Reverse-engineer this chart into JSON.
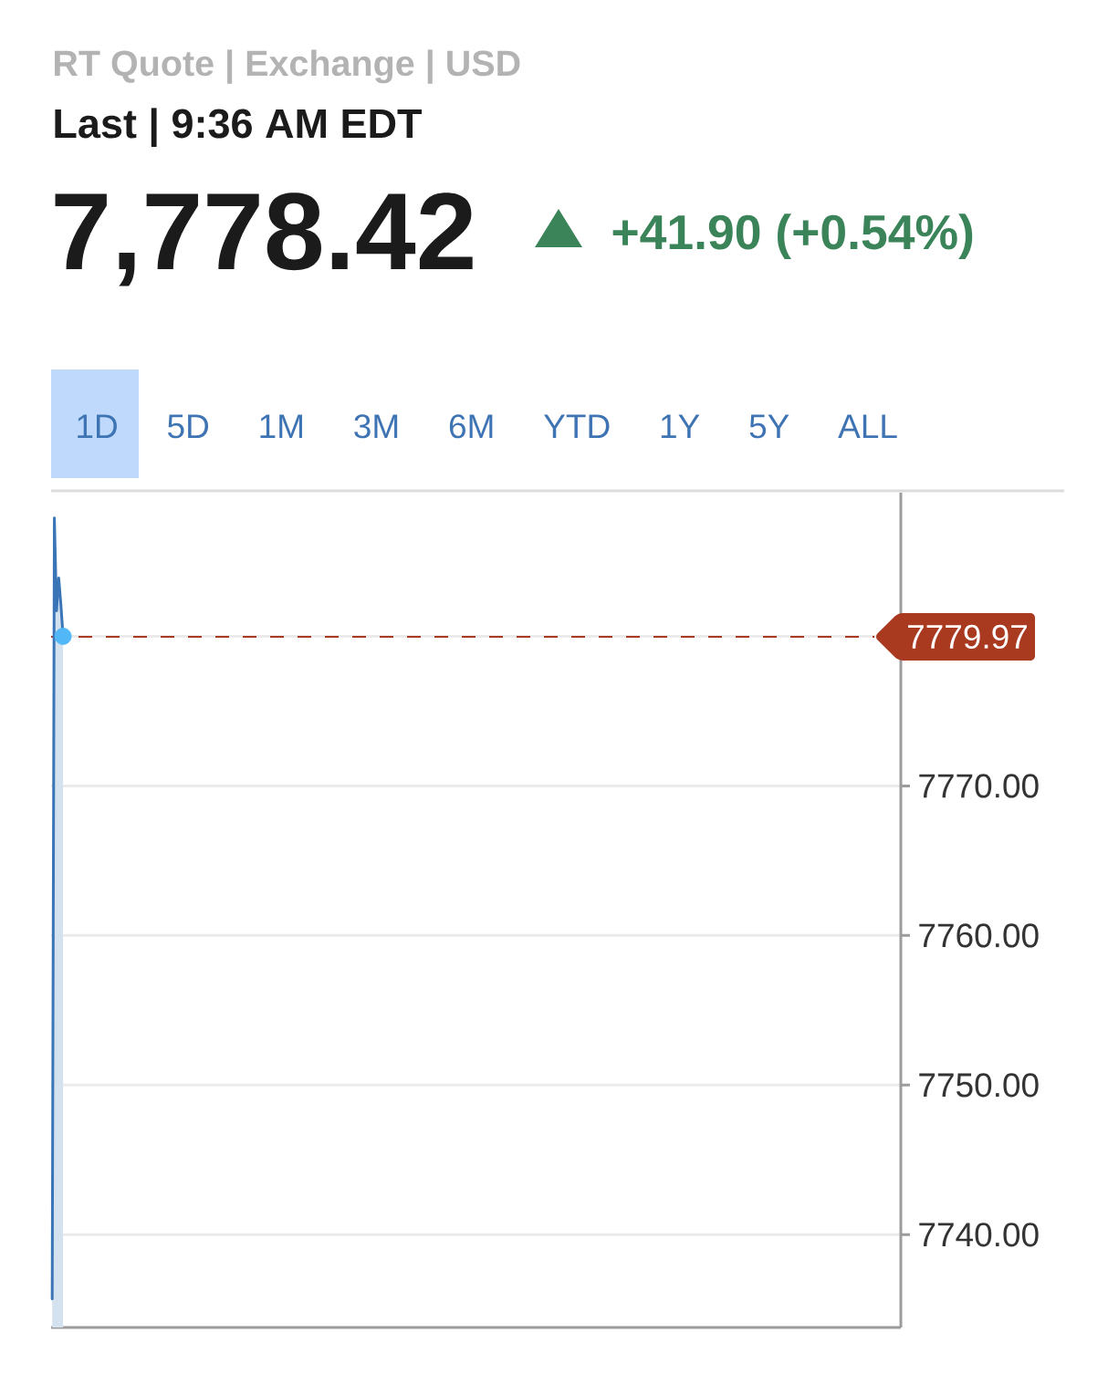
{
  "chart_data": {
    "type": "area",
    "title": "RT Quote | Exchange | USD",
    "subtitle": "Last | 9:36 AM EDT",
    "annotations": [
      "7,778.42",
      "+41.90 (+0.54%)",
      "1D",
      "5D",
      "1M",
      "3M",
      "6M",
      "YTD",
      "1Y",
      "5Y",
      "ALL"
    ],
    "categories": [
      null,
      null,
      null,
      null,
      null,
      null,
      null,
      null,
      null,
      null,
      null,
      null,
      null,
      null,
      null,
      null,
      null,
      null,
      null,
      null,
      null,
      null,
      null,
      null,
      null,
      null,
      null,
      null,
      null,
      null,
      null,
      null,
      null,
      null,
      null,
      null,
      null,
      null,
      null,
      null,
      null,
      null,
      null,
      null,
      null,
      null,
      null,
      null,
      null,
      null,
      null,
      null,
      null,
      null,
      null,
      null,
      null,
      null,
      null,
      null,
      null,
      null,
      null,
      null,
      null,
      null,
      null,
      null,
      null,
      null,
      null,
      null,
      null,
      null,
      null,
      null,
      null,
      null,
      null,
      null,
      null,
      null,
      null,
      null,
      null,
      null,
      null,
      null,
      null,
      null,
      null,
      null,
      null,
      null,
      null,
      null,
      null,
      null,
      null,
      null,
      null,
      null,
      null,
      null,
      null,
      null,
      null,
      null,
      null,
      null,
      null,
      null,
      null,
      null,
      null,
      null,
      null,
      null,
      null,
      null,
      null,
      null,
      null,
      null,
      null,
      null,
      null,
      null,
      null,
      null,
      null,
      null,
      null,
      null,
      null,
      null,
      null,
      null,
      null,
      null,
      null,
      null,
      null,
      null,
      null,
      null,
      null,
      null,
      null,
      null,
      null,
      null,
      null,
      null,
      null,
      null,
      null,
      null,
      null,
      null,
      null,
      null,
      null,
      null,
      null,
      null,
      null,
      null,
      null,
      null,
      null,
      null,
      null,
      null,
      null,
      null,
      null,
      null,
      null,
      null,
      null,
      null,
      null,
      null,
      null,
      null,
      null,
      null,
      null,
      null,
      null,
      null,
      null,
      null,
      null,
      null,
      null,
      null,
      null,
      null,
      null,
      null,
      null,
      null,
      null,
      null,
      null,
      null,
      null,
      null,
      null,
      null,
      null,
      null,
      null,
      null,
      null,
      null,
      null,
      null,
      null,
      null,
      null,
      null,
      null,
      null,
      null,
      null,
      null,
      null,
      null,
      null,
      null,
      null,
      null,
      null,
      null,
      null,
      null,
      null,
      null,
      null,
      null,
      null,
      null,
      null,
      null,
      null,
      null,
      null,
      null,
      null,
      null,
      null,
      null,
      null,
      null,
      null,
      null,
      null,
      null,
      null,
      null,
      null,
      null,
      null,
      null,
      null,
      null,
      null,
      null,
      null,
      null,
      null,
      null,
      null,
      null,
      null,
      null,
      null,
      null,
      null,
      null,
      null,
      null,
      null,
      null,
      null,
      null,
      null,
      null,
      null,
      null,
      null,
      null,
      null,
      null,
      null,
      null,
      null,
      null,
      null,
      null,
      null,
      null,
      null,
      null,
      null,
      null,
      null,
      null,
      null,
      null,
      null,
      null,
      null,
      null,
      null,
      null,
      null,
      null,
      null,
      null,
      null,
      null,
      null,
      null,
      null,
      null,
      null,
      null,
      null,
      null,
      null,
      null,
      null,
      null,
      null,
      null,
      null,
      null,
      null,
      null,
      null,
      null,
      null,
      null,
      null,
      null,
      null,
      null,
      null,
      null,
      null,
      null,
      null,
      null,
      null,
      null,
      null,
      null,
      null,
      null,
      null,
      null,
      null,
      null,
      null,
      null,
      null,
      null,
      null,
      null,
      null,
      null,
      null,
      null,
      null,
      null,
      null,
      null,
      null,
      null,
      null,
      null,
      null,
      null,
      null,
      null,
      null,
      null
    ],
    "series": [
      {
        "type": "scatter",
        "color": "#52b7f7",
        "marker": "circle",
        "values": [
          null,
          null,
          null,
          null,
          null,
          7780.0,
          null,
          null,
          null,
          null,
          null,
          null,
          null,
          null,
          null,
          null,
          null,
          null,
          null,
          null,
          null,
          null,
          null,
          null,
          null,
          null,
          null,
          null,
          null,
          null,
          null,
          null,
          null,
          null,
          null,
          null,
          null,
          null,
          null,
          null,
          null,
          null,
          null,
          null,
          null,
          null,
          null,
          null,
          null,
          null,
          null,
          null,
          null,
          null,
          null,
          null,
          null,
          null,
          null,
          null,
          null,
          null,
          null,
          null,
          null,
          null,
          null,
          null,
          null,
          null,
          null,
          null,
          null,
          null,
          null,
          null,
          null,
          null,
          null,
          null,
          null,
          null,
          null,
          null,
          null,
          null,
          null,
          null,
          null,
          null,
          null,
          null,
          null,
          null,
          null,
          null,
          null,
          null,
          null,
          null,
          null,
          null,
          null,
          null,
          null,
          null,
          null,
          null,
          null,
          null,
          null,
          null,
          null,
          null,
          null,
          null,
          null,
          null,
          null,
          null,
          null,
          null,
          null,
          null,
          null,
          null,
          null,
          null,
          null,
          null,
          null,
          null,
          null,
          null,
          null,
          null,
          null,
          null,
          null,
          null,
          null,
          null,
          null,
          null,
          null,
          null,
          null,
          null,
          null,
          null,
          null,
          null,
          null,
          null,
          null,
          null,
          null,
          null,
          null,
          null,
          null,
          null,
          null,
          null,
          null,
          null,
          null,
          null,
          null,
          null,
          null,
          null,
          null,
          null,
          null,
          null,
          null,
          null,
          null,
          null,
          null,
          null,
          null,
          null,
          null,
          null,
          null,
          null,
          null,
          null,
          null,
          null,
          null,
          null,
          null,
          null,
          null,
          null,
          null,
          null,
          null,
          null,
          null,
          null,
          null,
          null,
          null,
          null,
          null,
          null,
          null,
          null,
          null,
          null,
          null,
          null,
          null,
          null,
          null,
          null,
          null,
          null,
          null,
          null,
          null,
          null,
          null,
          null,
          null,
          null,
          null,
          null,
          null,
          null,
          null,
          null,
          null,
          null,
          null,
          null,
          null,
          null,
          null,
          null,
          null,
          null,
          null,
          null,
          null,
          null,
          null,
          null,
          null,
          null,
          null,
          null,
          null,
          null,
          null,
          null,
          null,
          null,
          null,
          null,
          null,
          null,
          null,
          null,
          null,
          null,
          null,
          null,
          null,
          null,
          null,
          null,
          null,
          null,
          null,
          null,
          null,
          null,
          null,
          null,
          null,
          null,
          null,
          null,
          null,
          null,
          null,
          null,
          null,
          null,
          null,
          null,
          null,
          null,
          null,
          null,
          null,
          null,
          null,
          null,
          null,
          null,
          null,
          null,
          null,
          null,
          null,
          null,
          null,
          null,
          null,
          null,
          null,
          null,
          null,
          null,
          null,
          null,
          null,
          null,
          null,
          null,
          null,
          null,
          null,
          null,
          null,
          null,
          null,
          null,
          null,
          null,
          null,
          null,
          null,
          null,
          null,
          null,
          null,
          null,
          null,
          null,
          null,
          null,
          null,
          null,
          null,
          null,
          null,
          null,
          null,
          null,
          null,
          null,
          null,
          null,
          null,
          null,
          null,
          null,
          null,
          null,
          null,
          null,
          null,
          null,
          null,
          null,
          null,
          null,
          null,
          null,
          null,
          null,
          null,
          null,
          null,
          null,
          null,
          null,
          null,
          null,
          null,
          null,
          null,
          null,
          null
        ]
      },
      {
        "color": "#3a75b7",
        "values": [
          7735.7,
          7787.9,
          7781.7,
          7783.9,
          7782.1,
          7780.0,
          null,
          null,
          null,
          null,
          null,
          null,
          null,
          null,
          null,
          null,
          null,
          null,
          null,
          null,
          null,
          null,
          null,
          null,
          null,
          null,
          null,
          null,
          null,
          null,
          null,
          null,
          null,
          null,
          null,
          null,
          null,
          null,
          null,
          null,
          null,
          null,
          null,
          null,
          null,
          null,
          null,
          null,
          null,
          null,
          null,
          null,
          null,
          null,
          null,
          null,
          null,
          null,
          null,
          null,
          null,
          null,
          null,
          null,
          null,
          null,
          null,
          null,
          null,
          null,
          null,
          null,
          null,
          null,
          null,
          null,
          null,
          null,
          null,
          null,
          null,
          null,
          null,
          null,
          null,
          null,
          null,
          null,
          null,
          null,
          null,
          null,
          null,
          null,
          null,
          null,
          null,
          null,
          null,
          null,
          null,
          null,
          null,
          null,
          null,
          null,
          null,
          null,
          null,
          null,
          null,
          null,
          null,
          null,
          null,
          null,
          null,
          null,
          null,
          null,
          null,
          null,
          null,
          null,
          null,
          null,
          null,
          null,
          null,
          null,
          null,
          null,
          null,
          null,
          null,
          null,
          null,
          null,
          null,
          null,
          null,
          null,
          null,
          null,
          null,
          null,
          null,
          null,
          null,
          null,
          null,
          null,
          null,
          null,
          null,
          null,
          null,
          null,
          null,
          null,
          null,
          null,
          null,
          null,
          null,
          null,
          null,
          null,
          null,
          null,
          null,
          null,
          null,
          null,
          null,
          null,
          null,
          null,
          null,
          null,
          null,
          null,
          null,
          null,
          null,
          null,
          null,
          null,
          null,
          null,
          null,
          null,
          null,
          null,
          null,
          null,
          null,
          null,
          null,
          null,
          null,
          null,
          null,
          null,
          null,
          null,
          null,
          null,
          null,
          null,
          null,
          null,
          null,
          null,
          null,
          null,
          null,
          null,
          null,
          null,
          null,
          null,
          null,
          null,
          null,
          null,
          null,
          null,
          null,
          null,
          null,
          null,
          null,
          null,
          null,
          null,
          null,
          null,
          null,
          null,
          null,
          null,
          null,
          null,
          null,
          null,
          null,
          null,
          null,
          null,
          null,
          null,
          null,
          null,
          null,
          null,
          null,
          null,
          null,
          null,
          null,
          null,
          null,
          null,
          null,
          null,
          null,
          null,
          null,
          null,
          null,
          null,
          null,
          null,
          null,
          null,
          null,
          null,
          null,
          null,
          null,
          null,
          null,
          null,
          null,
          null,
          null,
          null,
          null,
          null,
          null,
          null,
          null,
          null,
          null,
          null,
          null,
          null,
          null,
          null,
          null,
          null,
          null,
          null,
          null,
          null,
          null,
          null,
          null,
          null,
          null,
          null,
          null,
          null,
          null,
          null,
          null,
          null,
          null,
          null,
          null,
          null,
          null,
          null,
          null,
          null,
          null,
          null,
          null,
          null,
          null,
          null,
          null,
          null,
          null,
          null,
          null,
          null,
          null,
          null,
          null,
          null,
          null,
          null,
          null,
          null,
          null,
          null,
          null,
          null,
          null,
          null,
          null,
          null,
          null,
          null,
          null,
          null,
          null,
          null,
          null,
          null,
          null,
          null,
          null,
          null,
          null,
          null,
          null,
          null,
          null,
          null,
          null,
          null,
          null,
          null,
          null,
          null,
          null,
          null,
          null,
          null,
          null,
          null,
          null,
          null,
          null,
          null,
          null,
          null,
          null
        ]
      }
    ],
    "ylim": [
      7733.8,
      7789.6
    ],
    "yticks": [
      {
        "value": 7740,
        "label": "7740.00"
      },
      {
        "value": 7750,
        "label": "7750.00"
      },
      {
        "value": 7760,
        "label": "7760.00"
      },
      {
        "value": 7770,
        "label": "7770.00"
      },
      {
        "value": 7780,
        "label": null
      }
    ],
    "tick_labels": "y",
    "grid": "y",
    "ref_lines": [
      {
        "axis": "y",
        "value": 7779.97,
        "label": "7779.97",
        "color": "#a93a20",
        "line_style": "dashed"
      }
    ]
  }
}
